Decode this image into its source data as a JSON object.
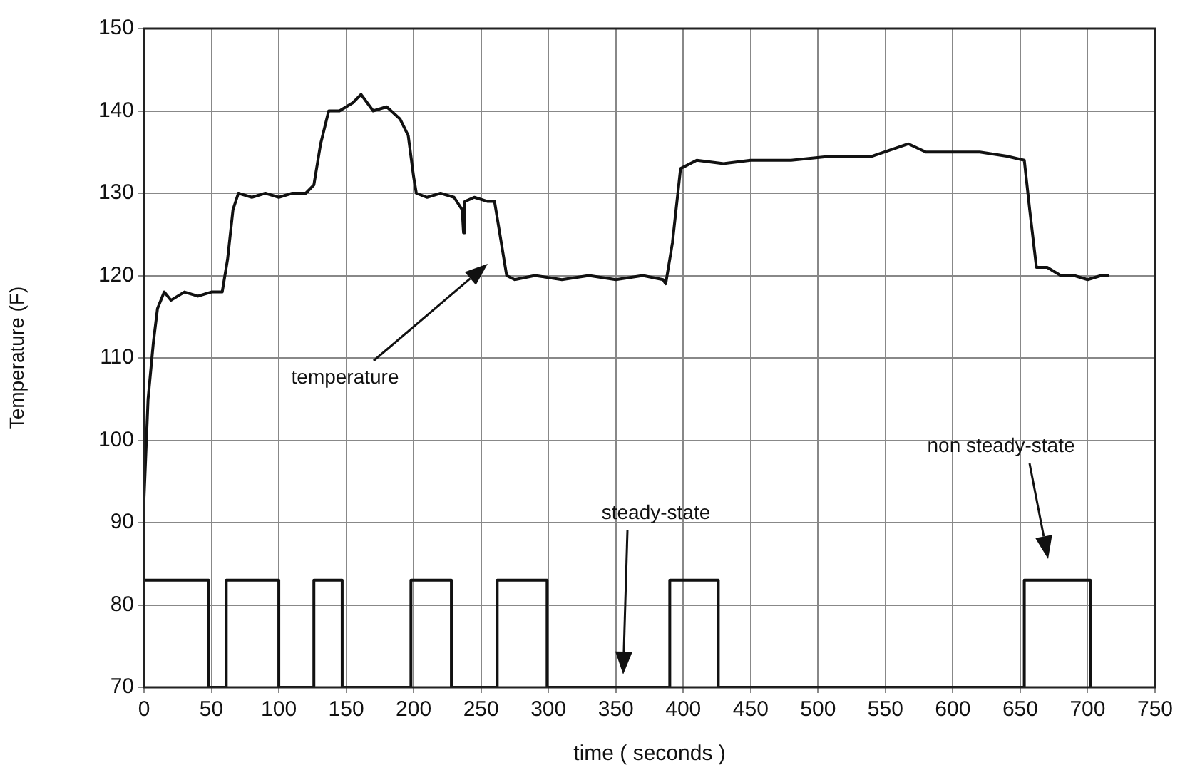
{
  "chart_data": {
    "type": "line",
    "xlabel": "time ( seconds )",
    "ylabel": "Temperature (F)",
    "xlim": [
      0,
      750
    ],
    "xticks": [
      0,
      50,
      100,
      150,
      200,
      250,
      300,
      350,
      400,
      450,
      500,
      550,
      600,
      650,
      700,
      750
    ],
    "ylim": [
      70,
      150
    ],
    "yticks": [
      70,
      80,
      90,
      100,
      110,
      120,
      130,
      140,
      150
    ],
    "grid": true,
    "legend": false,
    "marker": "none",
    "line_style": "solid",
    "series": [
      {
        "color": "#111111",
        "x": [
          0,
          3,
          7,
          10,
          15,
          20,
          30,
          40,
          50,
          58,
          62,
          66,
          70,
          80,
          90,
          100,
          110,
          120,
          126,
          131,
          137,
          145,
          155,
          161,
          170,
          180,
          190,
          196,
          200,
          202,
          210,
          220,
          230,
          236,
          237,
          238,
          245,
          255,
          260,
          265,
          269,
          275,
          290,
          310,
          330,
          350,
          370,
          385,
          387,
          392,
          398,
          410,
          430,
          450,
          480,
          510,
          540,
          567,
          580,
          600,
          620,
          640,
          653,
          657,
          662,
          670,
          680,
          690,
          700,
          710,
          716
        ],
        "values": [
          93,
          105,
          112,
          116,
          118,
          117,
          118,
          117.5,
          118,
          118,
          122,
          128,
          130,
          129.5,
          130,
          129.5,
          130,
          130,
          131,
          136,
          140,
          140,
          141,
          142,
          140,
          140.5,
          139,
          137,
          132,
          130,
          129.5,
          130,
          129.5,
          128,
          125.2,
          129,
          129.5,
          129,
          129,
          124,
          120,
          119.5,
          120,
          119.5,
          120,
          119.5,
          120,
          119.5,
          119,
          124,
          133,
          134,
          133.6,
          134,
          134,
          134.5,
          134.5,
          136,
          135,
          135,
          135,
          134.5,
          134,
          128,
          121,
          121,
          120,
          120,
          119.5,
          120,
          120
        ]
      },
      {
        "color": "#111111",
        "x": [
          0,
          0,
          48,
          48,
          61,
          61,
          100,
          100,
          126,
          126,
          147,
          147,
          198,
          198,
          228,
          228,
          262,
          262,
          299,
          299,
          390,
          390,
          426,
          426,
          653,
          653,
          702,
          702
        ],
        "values": [
          70,
          83,
          83,
          70,
          70,
          83,
          83,
          70,
          70,
          83,
          83,
          70,
          70,
          83,
          83,
          70,
          70,
          83,
          83,
          70,
          70,
          83,
          83,
          70,
          70,
          83,
          83,
          70
        ]
      }
    ],
    "annotations": [
      "temperature",
      "steady-state",
      "non steady-state"
    ]
  }
}
